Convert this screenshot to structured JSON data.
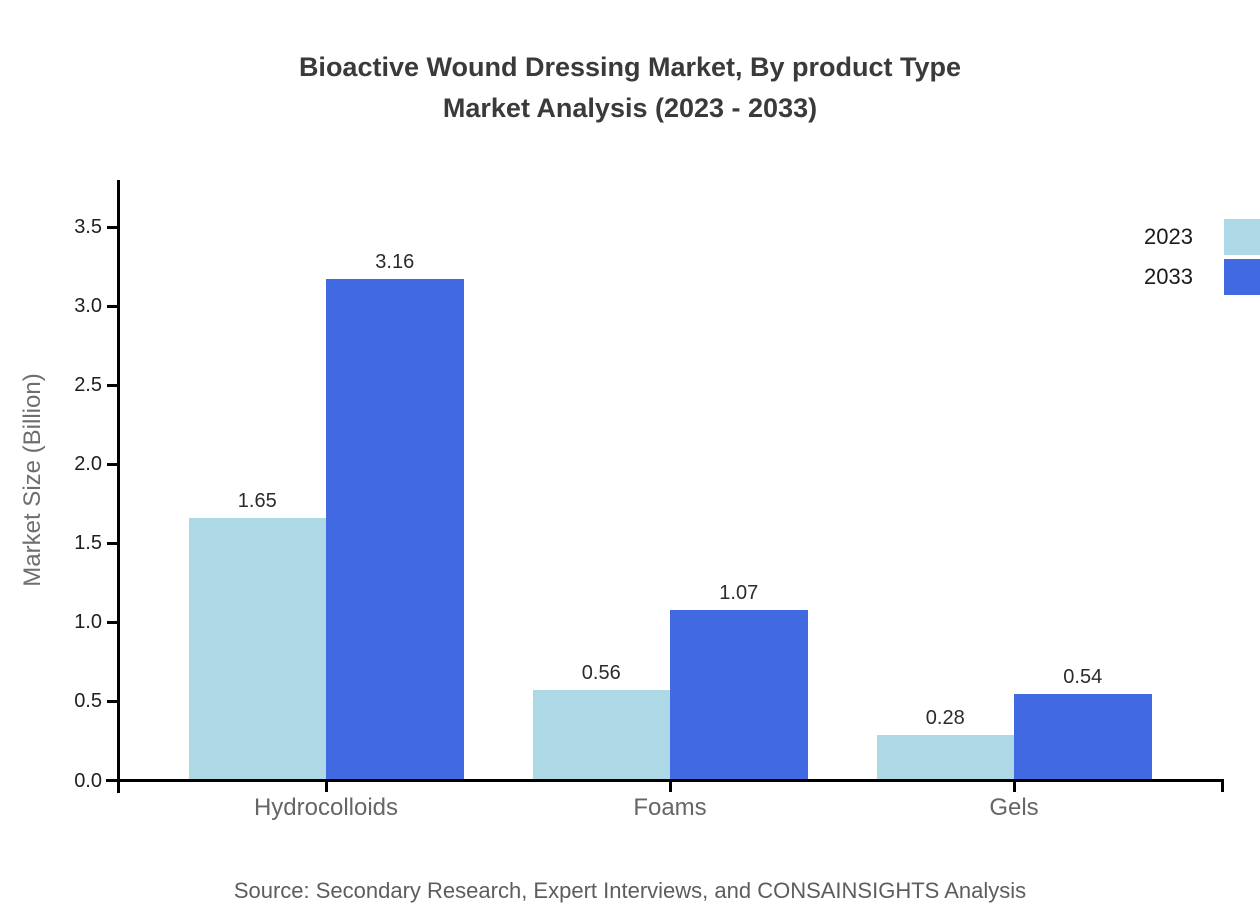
{
  "title": {
    "line1": "Bioactive Wound Dressing Market, By product Type",
    "line2": "Market Analysis (2023 - 2033)"
  },
  "source": "Source: Secondary Research, Expert Interviews, and CONSAINSIGHTS Analysis",
  "chart_data": {
    "type": "bar",
    "title": "Bioactive Wound Dressing Market, By product Type Market Analysis (2023 - 2033)",
    "xlabel": "",
    "ylabel": "Market Size (Billion)",
    "categories": [
      "Hydrocolloids",
      "Foams",
      "Gels"
    ],
    "series": [
      {
        "name": "2023",
        "color": "#ADD8E6",
        "values": [
          1.65,
          0.56,
          0.28
        ],
        "labels": [
          "1.65",
          "0.56",
          "0.28"
        ]
      },
      {
        "name": "2033",
        "color": "#4169E1",
        "values": [
          3.16,
          1.07,
          0.54
        ],
        "labels": [
          "3.16",
          "1.07",
          "0.54"
        ]
      }
    ],
    "ylim": [
      0,
      3.8
    ],
    "yticks": [
      "0.0",
      "0.5",
      "1.0",
      "1.5",
      "2.0",
      "2.5",
      "3.0",
      "3.5"
    ],
    "grid": false,
    "legend_position": "upper-right-outside",
    "bar_value_labels": true
  },
  "colors": {
    "axis": "#000000",
    "title_text": "#3a3a3a",
    "tick_text": "#1f1f1f",
    "muted_text": "#666666",
    "series_2023": "#ADD8E6",
    "series_2033": "#4169E1"
  }
}
